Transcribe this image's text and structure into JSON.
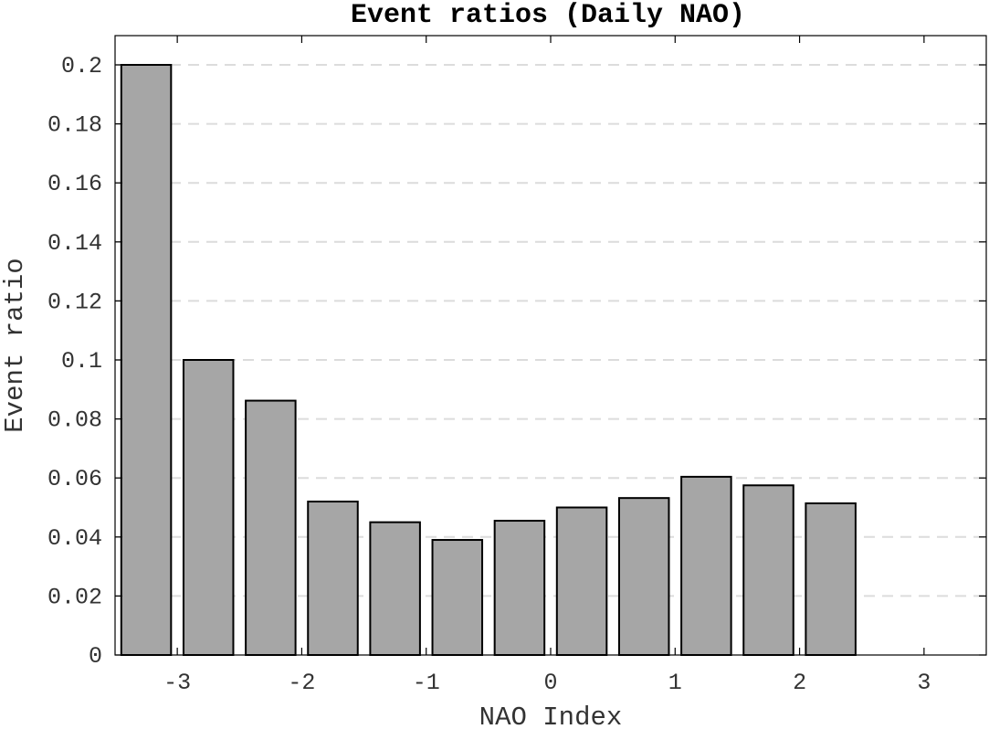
{
  "chart_data": {
    "type": "bar",
    "title": "Event ratios (Daily NAO)",
    "xlabel": "NAO Index",
    "ylabel": "Event ratio",
    "x": [
      -3.25,
      -2.75,
      -2.25,
      -1.75,
      -1.25,
      -0.75,
      -0.25,
      0.25,
      0.75,
      1.25,
      1.75,
      2.25,
      2.75
    ],
    "values": [
      0.2,
      0.1,
      0.0862,
      0.052,
      0.045,
      0.039,
      0.0455,
      0.05,
      0.0532,
      0.0604,
      0.0575,
      0.0514,
      0.0
    ],
    "xlim": [
      -3.5,
      3.5
    ],
    "ylim": [
      0,
      0.21
    ],
    "xticks": [
      -3,
      -2,
      -1,
      0,
      1,
      2,
      3
    ],
    "xtick_labels": [
      "-3",
      "-2",
      "-1",
      "0",
      "1",
      "2",
      "3"
    ],
    "yticks": [
      0,
      0.02,
      0.04,
      0.06,
      0.08,
      0.1,
      0.12,
      0.14,
      0.16,
      0.18,
      0.2
    ],
    "ytick_labels": [
      "0",
      "0.02",
      "0.04",
      "0.06",
      "0.08",
      "0.1",
      "0.12",
      "0.14",
      "0.16",
      "0.18",
      "0.2"
    ],
    "grid": "horizontal dashed",
    "bar_color": "#a6a6a6",
    "edge_color": "#000000"
  }
}
